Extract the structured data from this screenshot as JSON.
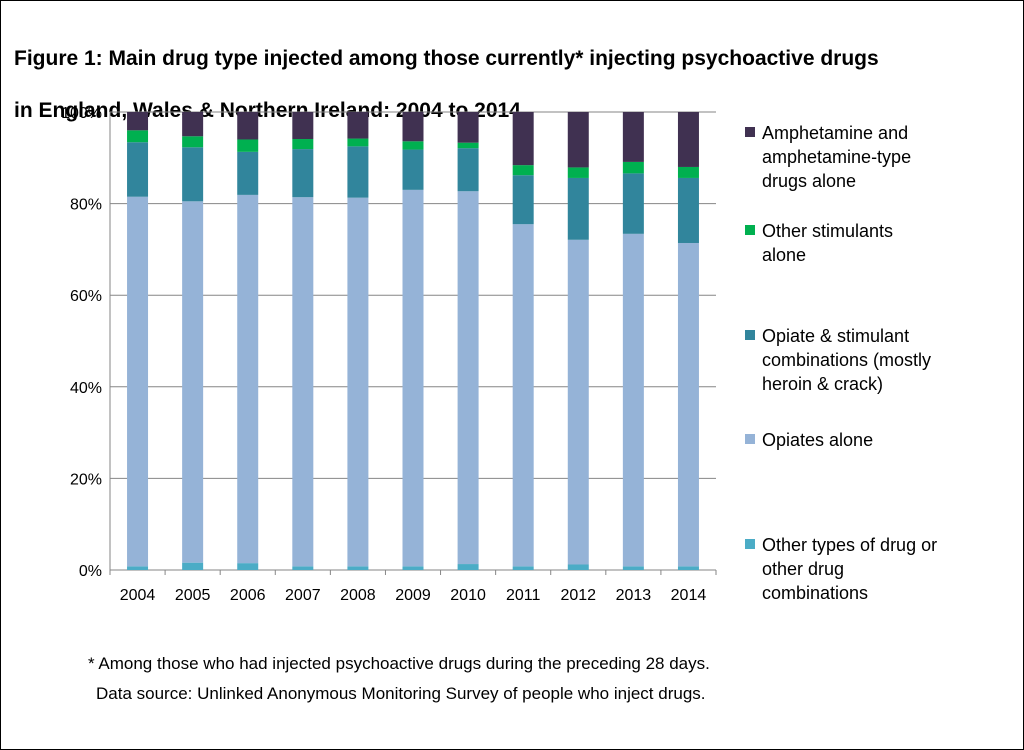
{
  "title_line1": "Figure 1: Main drug type injected among those currently* injecting psychoactive drugs",
  "title_line2": "in England, Wales & Northern Ireland: 2004 to 2014",
  "footnote1": "* Among those who had injected psychoactive drugs during the preceding 28 days.",
  "footnote2": "Data source: Unlinked Anonymous Monitoring Survey of people who inject drugs.",
  "chart_data": {
    "type": "bar",
    "stacked": true,
    "percent": true,
    "categories": [
      "2004",
      "2005",
      "2006",
      "2007",
      "2008",
      "2009",
      "2010",
      "2011",
      "2012",
      "2013",
      "2014"
    ],
    "ylim": [
      0,
      100
    ],
    "yticks": [
      "0%",
      "20%",
      "40%",
      "60%",
      "80%",
      "100%"
    ],
    "grid": true,
    "legend_position": "right",
    "series": [
      {
        "name": "Other types of drug or other drug combinations",
        "color": "#4BACC6",
        "values": [
          0.8,
          1.6,
          1.5,
          0.8,
          0.8,
          0.8,
          1.3,
          0.8,
          1.2,
          0.8,
          0.8
        ]
      },
      {
        "name": "Opiates alone",
        "color": "#95B3D7",
        "values": [
          80.7,
          78.9,
          80.4,
          80.6,
          80.5,
          82.2,
          81.4,
          74.7,
          70.9,
          72.6,
          70.6
        ]
      },
      {
        "name": "Opiate & stimulant combinations (mostly heroin & crack)",
        "color": "#31859C",
        "values": [
          11.9,
          11.8,
          9.4,
          10.5,
          11.2,
          8.8,
          9.4,
          10.7,
          13.5,
          13.2,
          14.2
        ]
      },
      {
        "name": "Other stimulants alone",
        "color": "#00B050",
        "values": [
          2.6,
          2.4,
          2.7,
          2.2,
          1.7,
          1.8,
          1.2,
          2.2,
          2.3,
          2.5,
          2.4
        ]
      },
      {
        "name": "Amphetamine and amphetamine-type drugs alone",
        "color": "#403151",
        "values": [
          4.0,
          5.3,
          6.0,
          5.9,
          5.8,
          6.4,
          6.7,
          11.6,
          12.1,
          10.9,
          12.0
        ]
      }
    ],
    "legend": [
      {
        "lines": [
          "Amphetamine and",
          "amphetamine-type",
          "drugs alone"
        ],
        "color": "#403151"
      },
      {
        "lines": [
          "Other stimulants",
          "alone"
        ],
        "color": "#00B050"
      },
      {
        "lines": [
          "Opiate & stimulant",
          "combinations (mostly",
          "heroin & crack)"
        ],
        "color": "#31859C"
      },
      {
        "lines": [
          "Opiates alone"
        ],
        "color": "#95B3D7"
      },
      {
        "lines": [
          "Other types of drug or",
          "other drug",
          "combinations"
        ],
        "color": "#4BACC6"
      }
    ]
  }
}
